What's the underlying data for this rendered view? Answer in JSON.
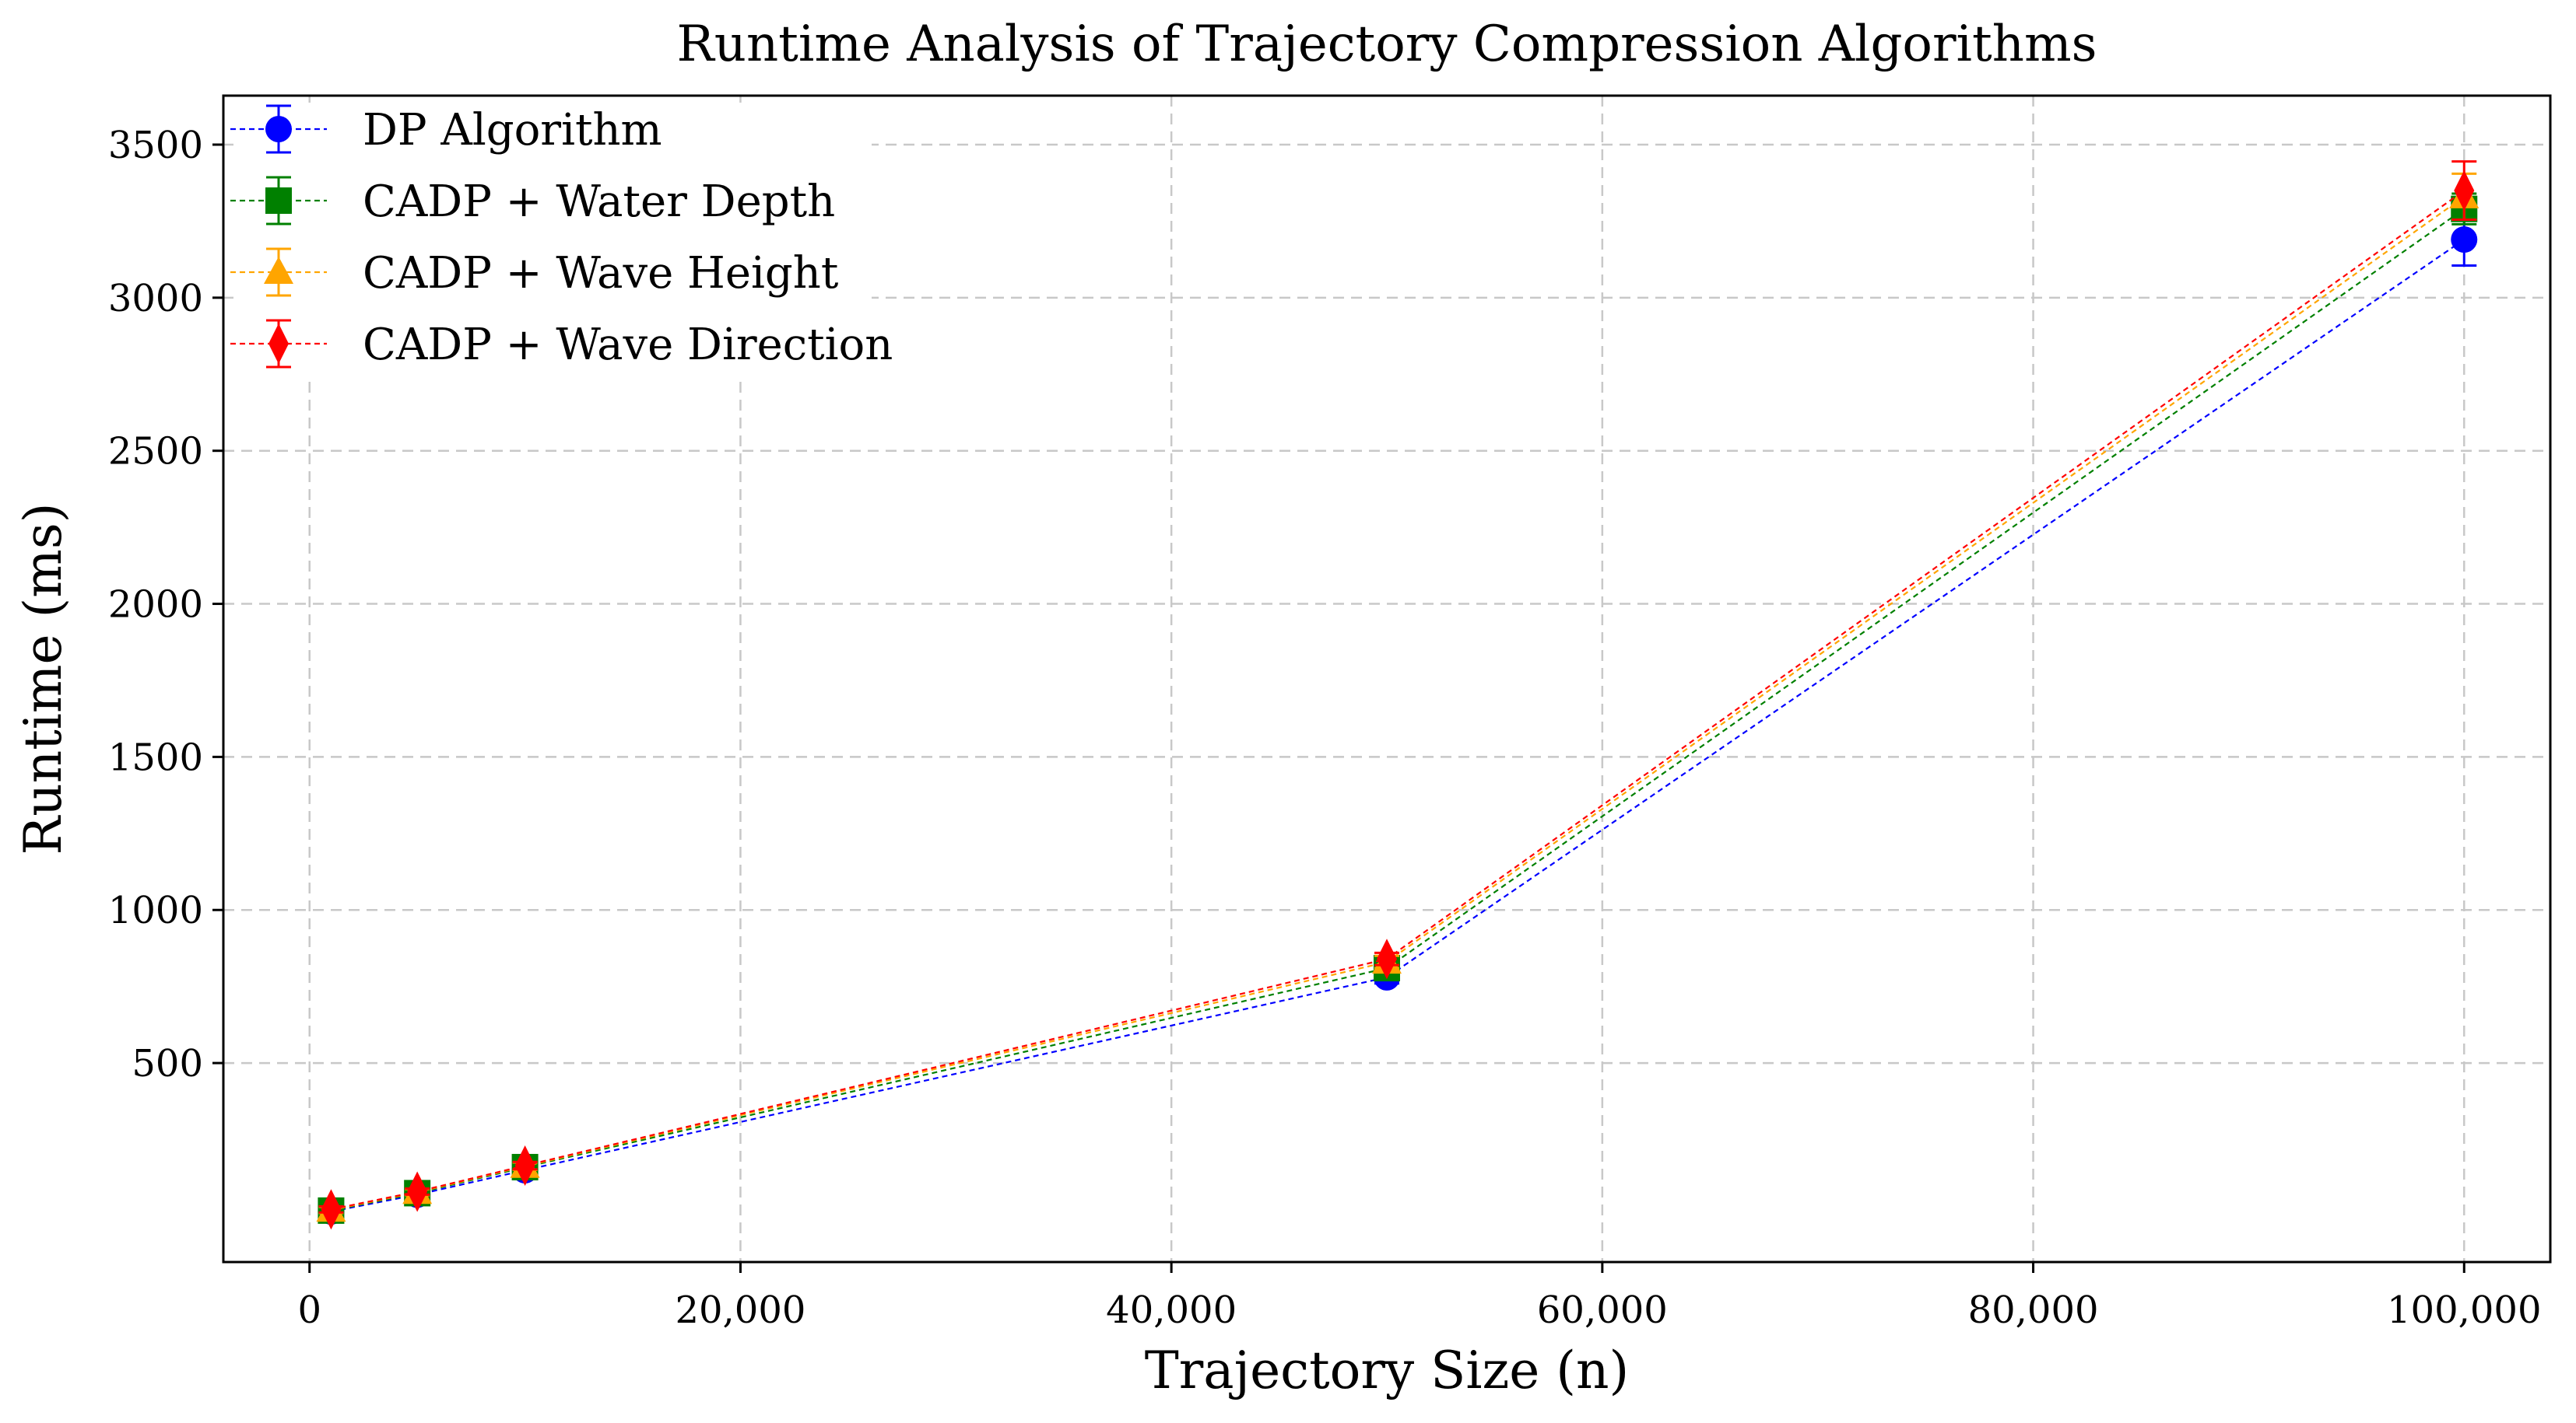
{
  "chart_data": {
    "type": "line",
    "title": "Runtime Analysis of Trajectory Compression Algorithms",
    "xlabel": "Trajectory Size (n)",
    "ylabel": "Runtime (ms)",
    "xlim": [
      -4000,
      104000
    ],
    "ylim": [
      -150,
      3660
    ],
    "xticks": [
      0,
      20000,
      40000,
      60000,
      80000,
      100000
    ],
    "xtick_labels": [
      "0",
      "20,000",
      "40,000",
      "60,000",
      "80,000",
      "100,000"
    ],
    "yticks": [
      500,
      1000,
      1500,
      2000,
      2500,
      3000,
      3500
    ],
    "ytick_labels": [
      "500",
      "1000",
      "1500",
      "2000",
      "2500",
      "3000",
      "3500"
    ],
    "grid": true,
    "legend_position": "top-left",
    "x": [
      1000,
      5000,
      10000,
      50000,
      100000
    ],
    "series": [
      {
        "name": "DP Algorithm",
        "color": "#0000ff",
        "marker": "circle",
        "values": [
          15,
          70,
          150,
          780,
          3190
        ],
        "errors": [
          10,
          10,
          12,
          20,
          85
        ]
      },
      {
        "name": "CADP + Water Depth",
        "color": "#008000",
        "marker": "square",
        "values": [
          18,
          75,
          160,
          810,
          3290
        ],
        "errors": [
          10,
          10,
          12,
          20,
          50
        ]
      },
      {
        "name": "CADP + Wave Height",
        "color": "#ffa500",
        "marker": "triangle",
        "values": [
          20,
          78,
          163,
          830,
          3330
        ],
        "errors": [
          10,
          10,
          12,
          20,
          75
        ]
      },
      {
        "name": "CADP + Wave Direction",
        "color": "#ff0000",
        "marker": "diamond",
        "values": [
          22,
          80,
          165,
          840,
          3350
        ],
        "errors": [
          10,
          10,
          12,
          20,
          95
        ]
      }
    ]
  }
}
